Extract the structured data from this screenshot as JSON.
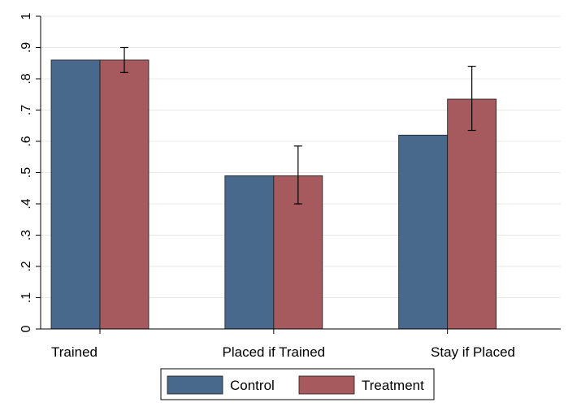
{
  "chart_data": {
    "type": "bar",
    "categories": [
      "Trained",
      "Placed if Trained",
      "Stay if Placed"
    ],
    "series": [
      {
        "name": "Control",
        "values": [
          0.86,
          0.49,
          0.62
        ],
        "color": "#48698c"
      },
      {
        "name": "Treatment",
        "values": [
          0.86,
          0.49,
          0.735
        ],
        "color": "#a65a5e",
        "error_bars": [
          [
            0.82,
            0.9
          ],
          [
            0.4,
            0.585
          ],
          [
            0.635,
            0.84
          ]
        ]
      }
    ],
    "y_ticks": [
      0,
      0.1,
      0.2,
      0.3,
      0.4,
      0.5,
      0.6,
      0.7,
      0.8,
      0.9,
      1
    ],
    "y_tick_labels": [
      "0",
      ".1",
      ".2",
      ".3",
      ".4",
      ".5",
      ".6",
      ".7",
      ".8",
      ".9",
      "1"
    ],
    "ylim": [
      0,
      1
    ],
    "title": "",
    "xlabel": "",
    "ylabel": "",
    "grid": true,
    "legend_position": "bottom"
  }
}
